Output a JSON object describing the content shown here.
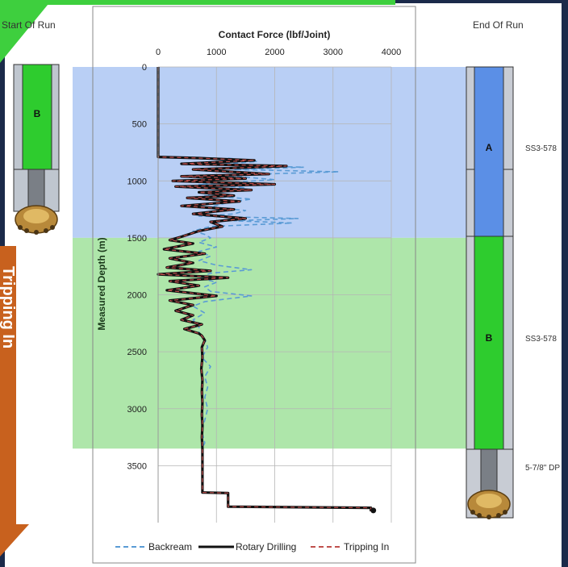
{
  "left_panel": {
    "title": "Start Of Run",
    "section_label": "B"
  },
  "right_panel": {
    "title": "End Of Run",
    "sections": [
      {
        "label": "A",
        "annotation": "SS3-578"
      },
      {
        "label": "B",
        "annotation": "SS3-578"
      }
    ],
    "pipe_annotation": "5-7/8\" DP"
  },
  "side_tab": {
    "text": "Tripping In"
  },
  "colors": {
    "zone_a": "#b9cff5",
    "zone_b": "#aee6aa",
    "section_a": "#5b8fe6",
    "section_b": "#2ecc2e",
    "backream": "#5a9bd5",
    "rotary": "#111111",
    "tripping": "#c0504d",
    "banner": "#3ecf3e",
    "side_tab": "#c8611e",
    "frame": "#1b2a4a"
  },
  "chart_data": {
    "type": "line",
    "title": "Contact Force (lbf/Joint)",
    "xlabel": "Contact Force (lbf/Joint)",
    "ylabel": "Measured Depth (m)",
    "xlim": [
      0,
      4000
    ],
    "ylim": [
      0,
      4000
    ],
    "y_inverted": true,
    "x_ticks": [
      0,
      1000,
      2000,
      3000,
      4000
    ],
    "y_ticks": [
      0,
      500,
      1000,
      1500,
      2000,
      2500,
      3000,
      3500
    ],
    "grid": true,
    "legend_position": "bottom",
    "zones": [
      {
        "label": "A",
        "depth_from": 0,
        "depth_to": 1500
      },
      {
        "label": "B",
        "depth_from": 1500,
        "depth_to": 3350
      }
    ],
    "series": [
      {
        "name": "Backream",
        "style": "dashed",
        "points": [
          [
            1200,
            800
          ],
          [
            1700,
            830
          ],
          [
            900,
            860
          ],
          [
            2500,
            880
          ],
          [
            1300,
            900
          ],
          [
            3100,
            920
          ],
          [
            1100,
            950
          ],
          [
            2000,
            990
          ],
          [
            700,
            1030
          ],
          [
            1500,
            1060
          ],
          [
            1100,
            1090
          ],
          [
            800,
            1130
          ],
          [
            1600,
            1160
          ],
          [
            1200,
            1190
          ],
          [
            900,
            1230
          ],
          [
            1500,
            1260
          ],
          [
            1300,
            1290
          ],
          [
            700,
            1310
          ],
          [
            2400,
            1330
          ],
          [
            1300,
            1350
          ],
          [
            2300,
            1370
          ],
          [
            900,
            1400
          ],
          [
            600,
            1440
          ],
          [
            800,
            1470
          ],
          [
            900,
            1500
          ],
          [
            700,
            1540
          ],
          [
            1000,
            1580
          ],
          [
            700,
            1620
          ],
          [
            900,
            1660
          ],
          [
            700,
            1700
          ],
          [
            1000,
            1740
          ],
          [
            1600,
            1780
          ],
          [
            900,
            1810
          ],
          [
            700,
            1850
          ],
          [
            1000,
            1890
          ],
          [
            800,
            1930
          ],
          [
            900,
            1970
          ],
          [
            1600,
            2010
          ],
          [
            800,
            2060
          ],
          [
            600,
            2100
          ],
          [
            800,
            2160
          ],
          [
            600,
            2220
          ],
          [
            700,
            2280
          ],
          [
            700,
            2330
          ],
          [
            800,
            2390
          ],
          [
            850,
            2460
          ],
          [
            750,
            2550
          ],
          [
            900,
            2630
          ],
          [
            800,
            2720
          ],
          [
            850,
            2810
          ],
          [
            800,
            2900
          ],
          [
            850,
            3000
          ],
          [
            800,
            3100
          ],
          [
            750,
            3200
          ],
          [
            800,
            3300
          ],
          [
            760,
            3340
          ]
        ]
      },
      {
        "name": "Rotary Drilling",
        "style": "solid",
        "points": [
          [
            0,
            0
          ],
          [
            0,
            790
          ],
          [
            700,
            800
          ],
          [
            1650,
            820
          ],
          [
            400,
            850
          ],
          [
            2200,
            870
          ],
          [
            600,
            900
          ],
          [
            1900,
            940
          ],
          [
            400,
            960
          ],
          [
            1500,
            980
          ],
          [
            250,
            1000
          ],
          [
            2000,
            1030
          ],
          [
            300,
            1050
          ],
          [
            1600,
            1080
          ],
          [
            700,
            1100
          ],
          [
            1300,
            1130
          ],
          [
            500,
            1150
          ],
          [
            1400,
            1180
          ],
          [
            400,
            1220
          ],
          [
            1300,
            1250
          ],
          [
            600,
            1290
          ],
          [
            1500,
            1330
          ],
          [
            900,
            1360
          ],
          [
            1100,
            1400
          ],
          [
            700,
            1440
          ],
          [
            400,
            1490
          ],
          [
            200,
            1520
          ],
          [
            600,
            1550
          ],
          [
            100,
            1600
          ],
          [
            800,
            1640
          ],
          [
            200,
            1680
          ],
          [
            600,
            1720
          ],
          [
            150,
            1760
          ],
          [
            900,
            1790
          ],
          [
            0,
            1820
          ],
          [
            1200,
            1850
          ],
          [
            200,
            1880
          ],
          [
            700,
            1920
          ],
          [
            150,
            1960
          ],
          [
            1000,
            2010
          ],
          [
            200,
            2050
          ],
          [
            600,
            2090
          ],
          [
            300,
            2140
          ],
          [
            600,
            2180
          ],
          [
            400,
            2220
          ],
          [
            750,
            2260
          ],
          [
            450,
            2300
          ],
          [
            700,
            2340
          ],
          [
            750,
            2360
          ],
          [
            800,
            2400
          ],
          [
            750,
            2460
          ],
          [
            760,
            2550
          ],
          [
            740,
            2650
          ],
          [
            760,
            2750
          ],
          [
            750,
            2850
          ],
          [
            760,
            2950
          ],
          [
            750,
            3050
          ],
          [
            760,
            3150
          ],
          [
            750,
            3250
          ],
          [
            760,
            3350
          ],
          [
            760,
            3560
          ],
          [
            760,
            3735
          ],
          [
            1200,
            3740
          ],
          [
            1200,
            3860
          ],
          [
            3650,
            3870
          ],
          [
            3650,
            3900
          ]
        ]
      },
      {
        "name": "Tripping In",
        "style": "dashed",
        "points": [
          [
            0,
            0
          ],
          [
            0,
            790
          ],
          [
            700,
            800
          ],
          [
            1650,
            820
          ],
          [
            400,
            850
          ],
          [
            2200,
            870
          ],
          [
            600,
            900
          ],
          [
            1900,
            940
          ],
          [
            400,
            960
          ],
          [
            1500,
            980
          ],
          [
            250,
            1000
          ],
          [
            2000,
            1030
          ],
          [
            300,
            1050
          ],
          [
            1600,
            1080
          ],
          [
            700,
            1100
          ],
          [
            1300,
            1130
          ],
          [
            500,
            1150
          ],
          [
            1400,
            1180
          ],
          [
            400,
            1220
          ],
          [
            1300,
            1250
          ],
          [
            600,
            1290
          ],
          [
            1500,
            1330
          ],
          [
            900,
            1360
          ],
          [
            1100,
            1400
          ],
          [
            700,
            1440
          ],
          [
            400,
            1490
          ],
          [
            200,
            1520
          ],
          [
            600,
            1550
          ],
          [
            100,
            1600
          ],
          [
            800,
            1640
          ],
          [
            200,
            1680
          ],
          [
            600,
            1720
          ],
          [
            150,
            1760
          ],
          [
            900,
            1790
          ],
          [
            0,
            1820
          ],
          [
            1200,
            1850
          ],
          [
            200,
            1880
          ],
          [
            700,
            1920
          ],
          [
            150,
            1960
          ],
          [
            1000,
            2010
          ],
          [
            200,
            2050
          ],
          [
            600,
            2090
          ],
          [
            300,
            2140
          ],
          [
            600,
            2180
          ],
          [
            400,
            2220
          ],
          [
            750,
            2260
          ],
          [
            450,
            2300
          ],
          [
            700,
            2340
          ],
          [
            750,
            2360
          ],
          [
            800,
            2400
          ],
          [
            750,
            2460
          ],
          [
            760,
            2550
          ],
          [
            740,
            2650
          ],
          [
            760,
            2750
          ],
          [
            750,
            2850
          ],
          [
            760,
            2950
          ],
          [
            750,
            3050
          ],
          [
            760,
            3150
          ],
          [
            750,
            3250
          ],
          [
            760,
            3350
          ],
          [
            760,
            3560
          ],
          [
            760,
            3735
          ],
          [
            1200,
            3740
          ],
          [
            1200,
            3860
          ],
          [
            3650,
            3870
          ],
          [
            3650,
            3900
          ]
        ]
      }
    ]
  }
}
